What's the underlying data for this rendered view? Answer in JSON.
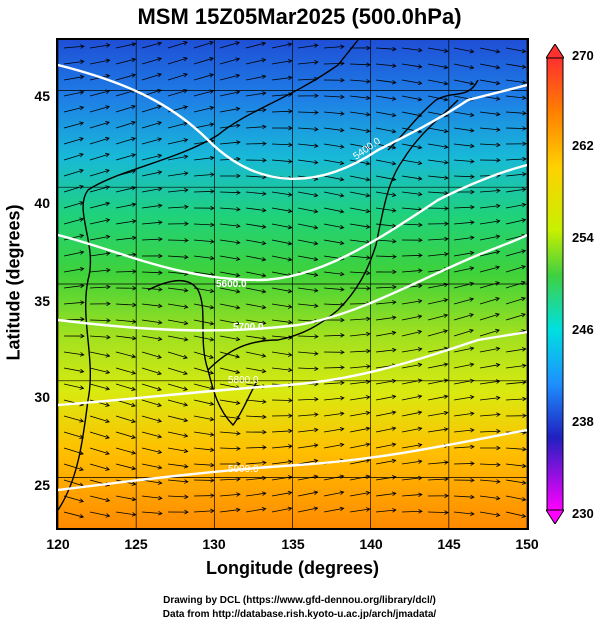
{
  "title": "MSM 15Z05Mar2025 (500.0hPa)",
  "axes": {
    "xlabel": "Longitude (degrees)",
    "ylabel": "Latitude  (degrees)",
    "x_ticks": [
      "120",
      "125",
      "130",
      "135",
      "140",
      "145",
      "150"
    ],
    "y_ticks": [
      "45",
      "40",
      "35",
      "30",
      "25"
    ],
    "xlim": [
      120,
      150
    ],
    "ylim": [
      22.4,
      47.6
    ]
  },
  "colorbar": {
    "ticks": [
      "270",
      "262",
      "254",
      "246",
      "238",
      "230"
    ],
    "range": [
      230,
      270
    ],
    "colors": [
      "#ff00ff",
      "#2020c0",
      "#1e90ff",
      "#00e0e0",
      "#40d040",
      "#c8f000",
      "#ffd000",
      "#ff8000",
      "#ff3030"
    ]
  },
  "contours": {
    "labels": [
      "5400.0",
      "5600.0",
      "5700.0",
      "5800.0",
      "5900.0"
    ],
    "color": "#ffffff"
  },
  "field": {
    "description_color_top": "#1f5ad8",
    "description_color_bottom": "#ff8c00"
  },
  "credit": {
    "line1": "Drawing by DCL (https://www.gfd-dennou.org/library/dcl/)",
    "line2": "Data from http://database.rish.kyoto-u.ac.jp/arch/jmadata/"
  }
}
